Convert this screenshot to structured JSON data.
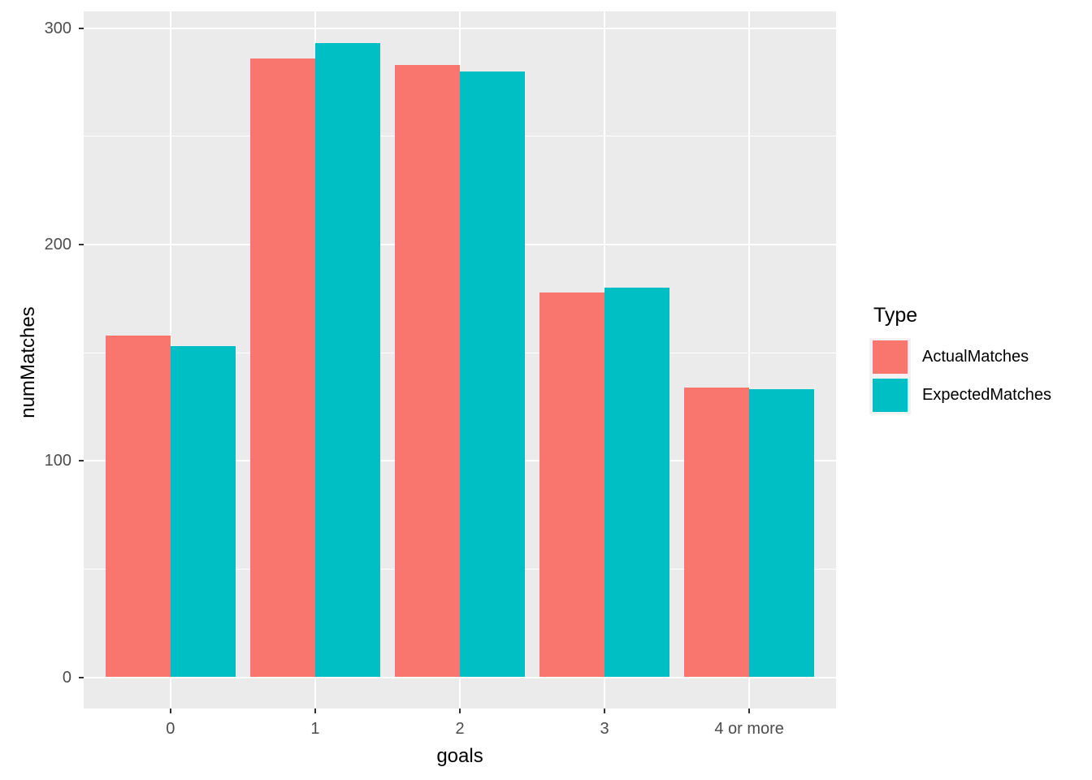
{
  "chart_data": {
    "type": "bar",
    "title": "",
    "categories": [
      "0",
      "1",
      "2",
      "3",
      "4 or more"
    ],
    "series": [
      {
        "name": "ActualMatches",
        "color": "#F8766D",
        "values": [
          158,
          286,
          283,
          178,
          134
        ]
      },
      {
        "name": "ExpectedMatches",
        "color": "#00BFC4",
        "values": [
          153,
          293,
          280,
          180,
          133
        ]
      }
    ],
    "xlabel": "goals",
    "ylabel": "numMatches",
    "ylim": [
      0,
      300
    ],
    "yticks": [
      0,
      100,
      200,
      300
    ],
    "yticks_minor": [
      50,
      150,
      250
    ],
    "legend_title": "Type",
    "legend_position": "right",
    "grid": "on",
    "style": {
      "panel_background": "#EBEBEB",
      "grid_color": "#FFFFFF",
      "tick_color": "#333333",
      "tick_label_color": "#4D4D4D",
      "axis_title_color": "#000000",
      "legend_key_background": "#F2F2F2"
    }
  }
}
